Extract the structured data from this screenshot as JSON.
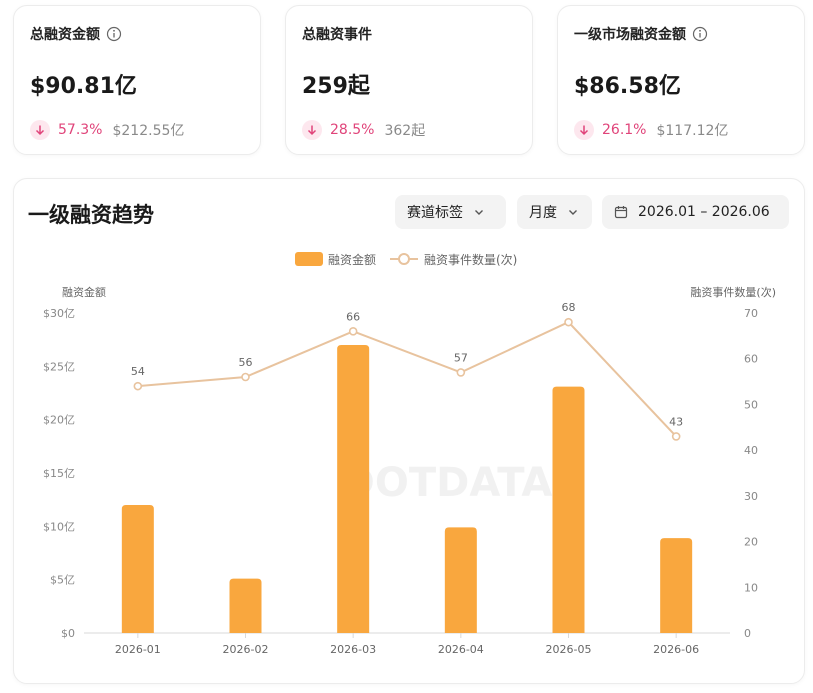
{
  "stats": [
    {
      "title": "总融资金额",
      "has_info": true,
      "value": "$90.81亿",
      "pct": "57.3%",
      "prev": "$212.55亿"
    },
    {
      "title": "总融资事件",
      "has_info": false,
      "value": "259起",
      "pct": "28.5%",
      "prev": "362起"
    },
    {
      "title": "一级市场融资金额",
      "has_info": true,
      "value": "$86.58亿",
      "pct": "26.1%",
      "prev": "$117.12亿"
    }
  ],
  "panel": {
    "title": "一级融资趋势",
    "filter_track": "赛道标签",
    "filter_period": "月度",
    "date_range": "2026.01 – 2026.06"
  },
  "colors": {
    "bar": "#F9A73E",
    "line": "#E8C39E",
    "down": "#e0447a"
  },
  "chart_data": {
    "type": "bar",
    "categories": [
      "2026-01",
      "2026-02",
      "2026-03",
      "2026-04",
      "2026-05",
      "2026-06"
    ],
    "series": [
      {
        "name": "融资金额",
        "type": "bar",
        "axis": "left",
        "values": [
          12,
          5.1,
          27,
          9.9,
          23.1,
          8.9
        ]
      },
      {
        "name": "融资事件数量(次)",
        "type": "line",
        "axis": "right",
        "values": [
          54,
          56,
          66,
          57,
          68,
          43
        ]
      }
    ],
    "ylabel": "融资金额",
    "ylabel_right": "融资事件数量(次)",
    "ylim": [
      0,
      30
    ],
    "ylim_right": [
      0,
      70
    ],
    "yticks": [
      "$0",
      "$5亿",
      "$10亿",
      "$15亿",
      "$20亿",
      "$25亿",
      "$30亿"
    ],
    "yticks_right": [
      "0",
      "10",
      "20",
      "30",
      "40",
      "50",
      "60",
      "70"
    ],
    "watermark": "DOTDATA",
    "legend_position": "top-center"
  }
}
